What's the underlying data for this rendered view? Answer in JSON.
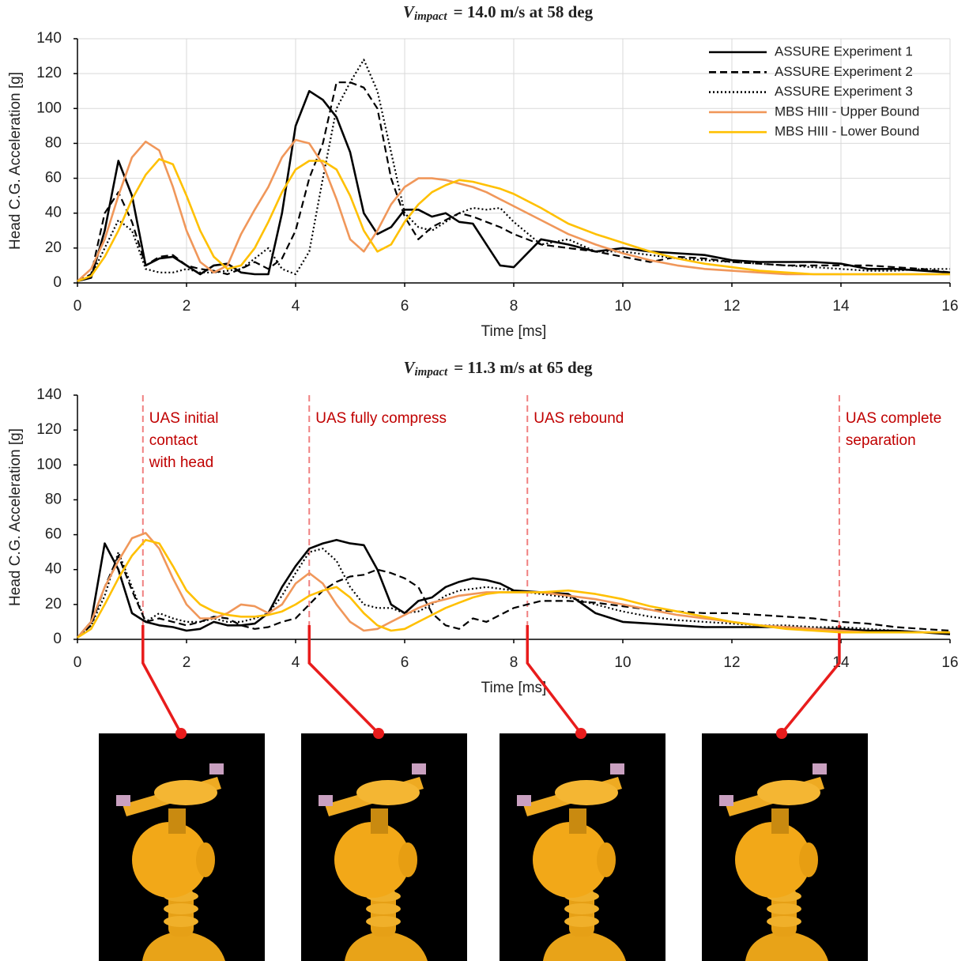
{
  "chart_data": [
    {
      "type": "line",
      "title": "V",
      "title_sub": "impact",
      "title_rest": "= 14.0 m/s at 58 deg",
      "xlabel": "Time [ms]",
      "ylabel": "Head C.G. Acceleration [g]",
      "xlim": [
        0,
        16
      ],
      "ylim": [
        0,
        140
      ],
      "xticks": [
        0,
        2,
        4,
        6,
        8,
        10,
        12,
        14,
        16
      ],
      "yticks": [
        0,
        20,
        40,
        60,
        80,
        100,
        120,
        140
      ],
      "grid": true,
      "legend": "upper right",
      "x": [
        0,
        0.25,
        0.5,
        0.75,
        1,
        1.25,
        1.5,
        1.75,
        2,
        2.25,
        2.5,
        2.75,
        3,
        3.25,
        3.5,
        3.75,
        4,
        4.25,
        4.5,
        4.75,
        5,
        5.25,
        5.5,
        5.75,
        6,
        6.25,
        6.5,
        6.75,
        7,
        7.25,
        7.5,
        7.75,
        8,
        8.5,
        9,
        9.5,
        10,
        10.5,
        11,
        11.5,
        12,
        12.5,
        13,
        13.5,
        14,
        14.5,
        15,
        15.5,
        16
      ],
      "series": [
        {
          "name": "ASSURE Experiment 1",
          "color": "#000000",
          "dash": "solid",
          "values": [
            1,
            3,
            30,
            70,
            50,
            10,
            14,
            15,
            10,
            5,
            10,
            11,
            6,
            5,
            5,
            40,
            90,
            110,
            105,
            95,
            75,
            40,
            28,
            32,
            42,
            42,
            38,
            40,
            35,
            34,
            22,
            10,
            9,
            25,
            22,
            18,
            20,
            18,
            17,
            16,
            13,
            12,
            12,
            12,
            11,
            8,
            8,
            7,
            6
          ]
        },
        {
          "name": "ASSURE Experiment 2",
          "color": "#000000",
          "dash": "dashed",
          "values": [
            1,
            5,
            40,
            52,
            35,
            10,
            15,
            16,
            10,
            8,
            7,
            5,
            8,
            12,
            8,
            14,
            30,
            60,
            80,
            115,
            115,
            112,
            100,
            60,
            38,
            25,
            32,
            36,
            40,
            38,
            35,
            32,
            28,
            22,
            20,
            18,
            15,
            12,
            15,
            14,
            12,
            11,
            10,
            10,
            10,
            10,
            9,
            8,
            6
          ]
        },
        {
          "name": "ASSURE Experiment 3",
          "color": "#000000",
          "dash": "dotted",
          "values": [
            1,
            4,
            20,
            36,
            30,
            8,
            6,
            6,
            8,
            6,
            6,
            7,
            8,
            14,
            20,
            8,
            5,
            18,
            60,
            100,
            115,
            128,
            110,
            75,
            40,
            32,
            30,
            35,
            40,
            43,
            42,
            43,
            35,
            22,
            25,
            18,
            18,
            16,
            14,
            13,
            12,
            11,
            10,
            9,
            8,
            7,
            7,
            8,
            8
          ]
        },
        {
          "name": "MBS HIII - Upper Bound",
          "color": "#f0975a",
          "dash": "solid",
          "values": [
            1,
            8,
            25,
            50,
            72,
            81,
            76,
            55,
            30,
            12,
            6,
            10,
            28,
            42,
            55,
            72,
            82,
            80,
            68,
            48,
            25,
            18,
            30,
            45,
            55,
            60,
            60,
            59,
            57,
            55,
            52,
            48,
            44,
            36,
            28,
            22,
            17,
            13,
            10,
            8,
            7,
            6,
            5,
            5,
            5,
            5,
            5,
            5,
            5
          ]
        },
        {
          "name": "MBS HIII - Lower Bound",
          "color": "#ffc000",
          "dash": "solid",
          "values": [
            1,
            4,
            15,
            30,
            48,
            62,
            71,
            68,
            50,
            30,
            15,
            8,
            10,
            20,
            35,
            52,
            65,
            70,
            70,
            65,
            50,
            30,
            18,
            22,
            35,
            45,
            52,
            56,
            59,
            58,
            56,
            54,
            51,
            43,
            34,
            28,
            23,
            18,
            14,
            11,
            9,
            7,
            6,
            5,
            5,
            5,
            5,
            5,
            5
          ]
        }
      ]
    },
    {
      "type": "line",
      "title": "V",
      "title_sub": "impact",
      "title_rest": "= 11.3 m/s at 65 deg",
      "xlabel": "Time [ms]",
      "ylabel": "Head C.G. Acceleration [g]",
      "xlim": [
        0,
        16
      ],
      "ylim": [
        0,
        140
      ],
      "xticks": [
        0,
        2,
        4,
        6,
        8,
        10,
        12,
        14,
        16
      ],
      "yticks": [
        0,
        20,
        40,
        60,
        80,
        100,
        120,
        140
      ],
      "grid": false,
      "x": [
        0,
        0.25,
        0.5,
        0.75,
        1,
        1.25,
        1.5,
        1.75,
        2,
        2.25,
        2.5,
        2.75,
        3,
        3.25,
        3.5,
        3.75,
        4,
        4.25,
        4.5,
        4.75,
        5,
        5.25,
        5.5,
        5.75,
        6,
        6.25,
        6.5,
        6.75,
        7,
        7.25,
        7.5,
        7.75,
        8,
        8.5,
        9,
        9.5,
        10,
        10.5,
        11,
        11.5,
        12,
        12.5,
        13,
        13.5,
        14,
        14.5,
        15,
        15.5,
        16
      ],
      "series": [
        {
          "color": "#000000",
          "dash": "solid",
          "values": [
            1,
            10,
            55,
            40,
            15,
            10,
            8,
            7,
            5,
            6,
            10,
            8,
            8,
            9,
            15,
            30,
            42,
            52,
            55,
            57,
            55,
            54,
            40,
            20,
            15,
            22,
            24,
            30,
            33,
            35,
            34,
            32,
            28,
            27,
            26,
            15,
            10,
            9,
            8,
            7,
            7,
            7,
            7,
            6,
            6,
            5,
            5,
            4,
            3
          ]
        },
        {
          "color": "#000000",
          "dash": "dashed",
          "values": [
            1,
            8,
            30,
            48,
            28,
            10,
            12,
            10,
            8,
            10,
            13,
            12,
            8,
            6,
            7,
            10,
            12,
            20,
            28,
            33,
            36,
            37,
            40,
            38,
            35,
            30,
            15,
            8,
            6,
            12,
            10,
            14,
            18,
            22,
            22,
            21,
            19,
            17,
            16,
            15,
            15,
            14,
            13,
            12,
            10,
            9,
            7,
            6,
            5
          ]
        },
        {
          "color": "#000000",
          "dash": "dotted",
          "values": [
            1,
            8,
            25,
            50,
            30,
            10,
            15,
            12,
            10,
            10,
            12,
            10,
            10,
            12,
            15,
            25,
            38,
            50,
            52,
            45,
            30,
            20,
            18,
            18,
            15,
            16,
            20,
            25,
            28,
            29,
            30,
            29,
            28,
            26,
            24,
            20,
            16,
            13,
            11,
            10,
            9,
            8,
            8,
            7,
            7,
            6,
            5,
            4,
            4
          ]
        },
        {
          "color": "#f0975a",
          "dash": "solid",
          "values": [
            1,
            10,
            30,
            45,
            58,
            61,
            52,
            35,
            20,
            12,
            12,
            15,
            20,
            19,
            15,
            20,
            32,
            38,
            32,
            20,
            10,
            5,
            6,
            10,
            14,
            18,
            21,
            23,
            25,
            26,
            27,
            27,
            27,
            27,
            25,
            23,
            20,
            17,
            14,
            12,
            10,
            8,
            7,
            6,
            5,
            4,
            4,
            4,
            4
          ]
        },
        {
          "color": "#ffc000",
          "dash": "solid",
          "values": [
            1,
            6,
            20,
            35,
            48,
            57,
            55,
            42,
            28,
            20,
            16,
            14,
            13,
            13,
            14,
            16,
            20,
            25,
            28,
            30,
            24,
            15,
            8,
            5,
            6,
            10,
            14,
            18,
            21,
            24,
            26,
            27,
            27,
            27,
            28,
            26,
            23,
            19,
            16,
            13,
            10,
            8,
            6,
            5,
            4,
            4,
            4,
            4,
            4
          ]
        }
      ],
      "annotations": [
        {
          "x": 1.2,
          "lines": [
            "UAS initial",
            "contact",
            "with head"
          ]
        },
        {
          "x": 4.25,
          "lines": [
            "UAS fully compress"
          ]
        },
        {
          "x": 8.25,
          "lines": [
            "UAS rebound"
          ]
        },
        {
          "x": 13.97,
          "lines": [
            "UAS complete",
            "separation"
          ]
        }
      ]
    }
  ]
}
